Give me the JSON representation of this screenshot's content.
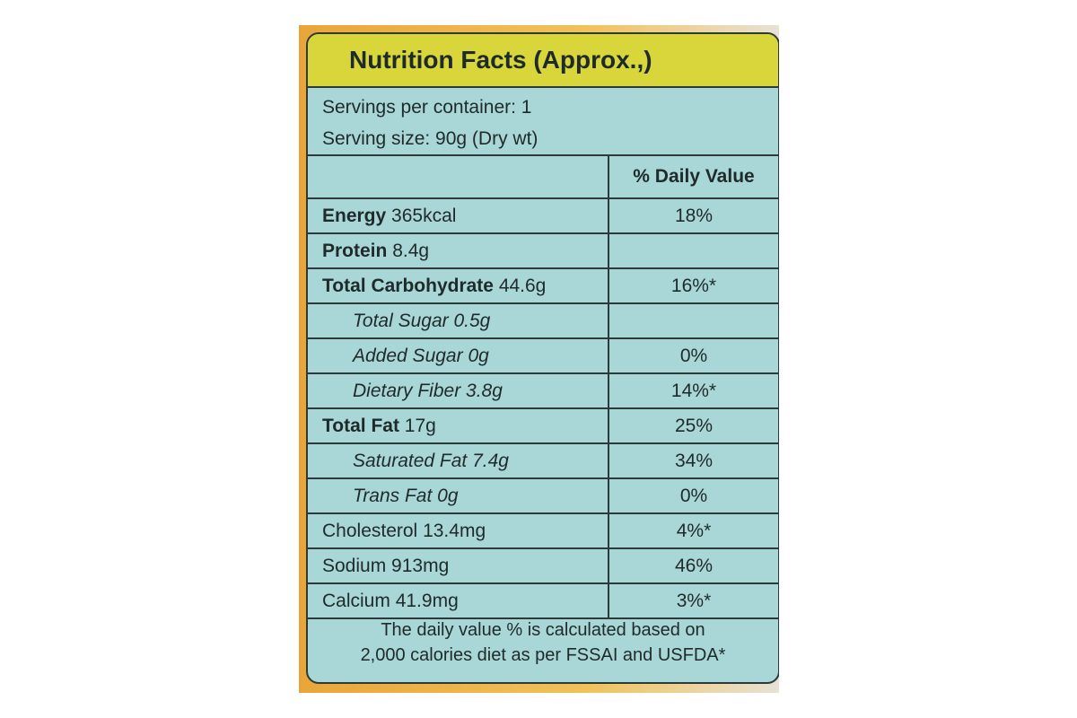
{
  "header": {
    "title": "Nutrition Facts (Approx.,)"
  },
  "servings": [
    "Servings per container: 1",
    "Serving size: 90g (Dry wt)"
  ],
  "table": {
    "dv_header": "% Daily Value",
    "rows": [
      {
        "name": "Energy",
        "amount": "365kcal",
        "daily_value": "18%"
      },
      {
        "name": "Protein",
        "amount": "8.4g"
      },
      {
        "name": "Total Carbohydrate",
        "amount": "44.6g",
        "daily_value": "16%*"
      },
      {
        "name": "Total Sugar",
        "amount": "0.5g"
      },
      {
        "name": "Added Sugar",
        "amount": "0g",
        "daily_value": "0%"
      },
      {
        "name": "Dietary Fiber",
        "amount": "3.8g",
        "daily_value": "14%*"
      },
      {
        "name": "Total Fat",
        "amount": "17g",
        "daily_value": "25%"
      },
      {
        "name": "Saturated Fat",
        "amount": "7.4g",
        "daily_value": "34%"
      },
      {
        "name": "Trans Fat",
        "amount": "0g",
        "daily_value": "0%"
      },
      {
        "name": "Cholesterol",
        "amount": "13.4mg",
        "daily_value": "4%*"
      },
      {
        "name": "Sodium",
        "amount": "913mg",
        "daily_value": "46%"
      },
      {
        "name": "Calcium",
        "amount": "41.9mg",
        "daily_value": "3%*"
      }
    ]
  },
  "footer": [
    "The daily value % is calculated based on",
    "2,000 calories diet as per FSSAI and USFDA*"
  ]
}
